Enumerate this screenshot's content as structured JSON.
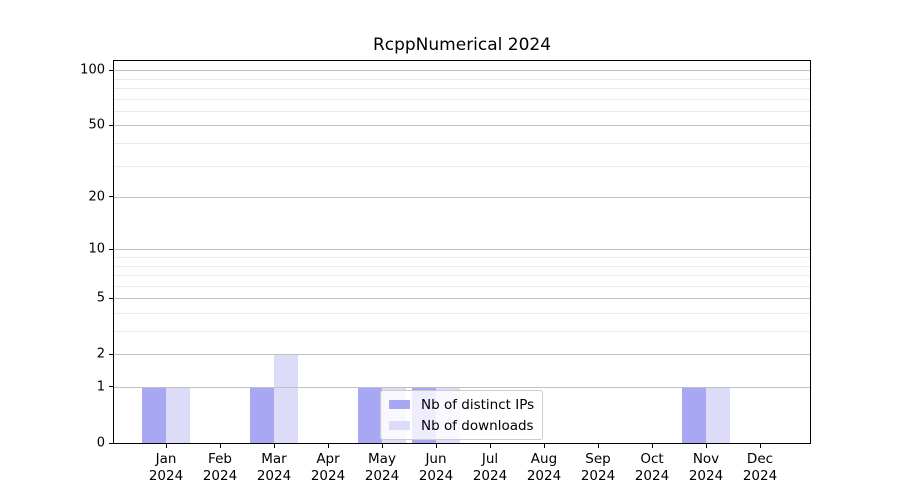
{
  "title": "RcppNumerical 2024",
  "chart_data": {
    "type": "bar",
    "title": "RcppNumerical 2024",
    "categories": [
      "Jan 2024",
      "Feb 2024",
      "Mar 2024",
      "Apr 2024",
      "May 2024",
      "Jun 2024",
      "Jul 2024",
      "Aug 2024",
      "Sep 2024",
      "Oct 2024",
      "Nov 2024",
      "Dec 2024"
    ],
    "series": [
      {
        "name": "Nb of distinct IPs",
        "color": "#a7a7f3",
        "values": [
          1,
          0,
          1,
          0,
          1,
          1,
          0,
          0,
          0,
          0,
          1,
          0
        ]
      },
      {
        "name": "Nb of downloads",
        "color": "#dcdcf8",
        "values": [
          1,
          0,
          2,
          0,
          1,
          1,
          0,
          0,
          0,
          0,
          1,
          0
        ]
      }
    ],
    "xlabel": "",
    "ylabel": "",
    "yscale": "log1p",
    "ylim": [
      0,
      112
    ],
    "yticks_major": [
      0,
      1,
      2,
      5,
      10,
      20,
      50,
      100
    ],
    "yticks_minor": [
      3,
      4,
      6,
      7,
      8,
      9,
      30,
      40,
      60,
      70,
      80,
      90
    ],
    "grid": "horizontal",
    "legend_position": "lower center"
  },
  "colors": {
    "grid_major": "#c2c2c2",
    "grid_minor": "#ebebeb",
    "spine": "#000000",
    "text": "#000000",
    "legend_border": "#cccccc",
    "legend_background": "rgba(255,255,255,0.8)"
  }
}
